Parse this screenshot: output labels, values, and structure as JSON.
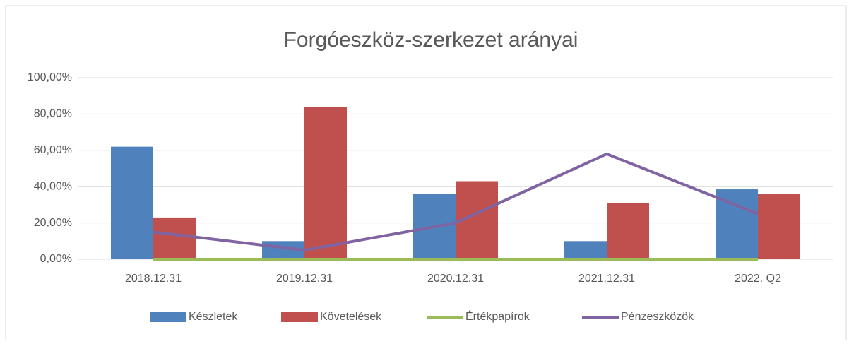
{
  "chart_data": {
    "type": "bar",
    "title": "Forgóeszköz-szerkezet arányai",
    "categories": [
      "2018.12.31",
      "2019.12.31",
      "2020.12.31",
      "2021.12.31",
      "2022. Q2"
    ],
    "series": [
      {
        "name": "Készletek",
        "color": "#4f81bd",
        "type": "bar",
        "values": [
          62,
          10,
          36,
          10,
          38.5
        ]
      },
      {
        "name": "Követelések",
        "color": "#c0504d",
        "type": "bar",
        "values": [
          23,
          84,
          43,
          31,
          36
        ]
      },
      {
        "name": "Értékpapírok",
        "color": "#9bbb59",
        "type": "line",
        "values": [
          0,
          0,
          0,
          0,
          0
        ]
      },
      {
        "name": "Pénzeszközök",
        "color": "#8064a2",
        "type": "line",
        "values": [
          15,
          5,
          20,
          58,
          25
        ]
      }
    ],
    "ylim": [
      0,
      100
    ],
    "yticks": [
      {
        "value": 0,
        "label": "0,00%"
      },
      {
        "value": 20,
        "label": "20,00%"
      },
      {
        "value": 40,
        "label": "40,00%"
      },
      {
        "value": 60,
        "label": "60,00%"
      },
      {
        "value": 80,
        "label": "80,00%"
      },
      {
        "value": 100,
        "label": "100,00%"
      }
    ],
    "grid": true,
    "legend": "bottom"
  }
}
